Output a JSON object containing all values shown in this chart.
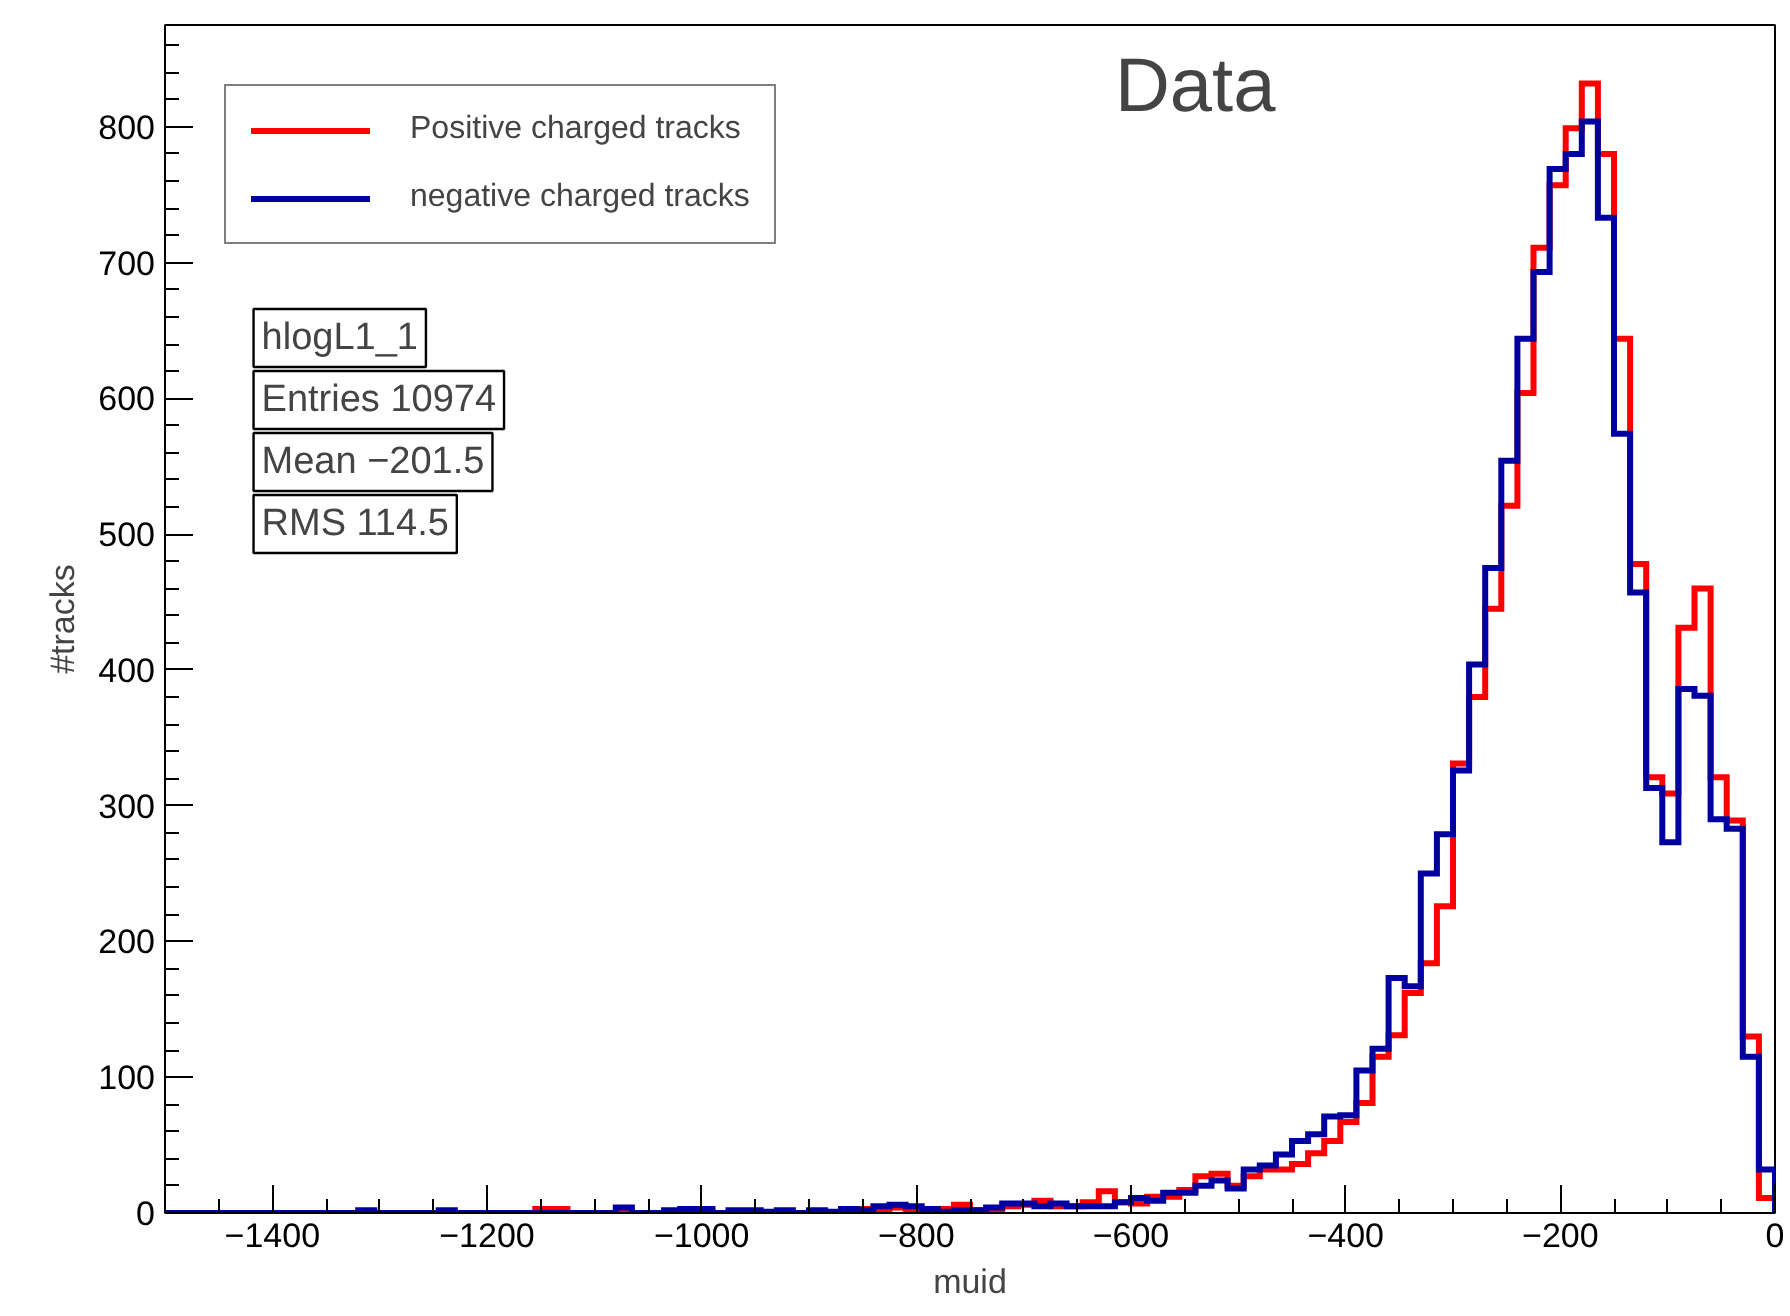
{
  "chart_data": {
    "type": "histogram",
    "title": "Data",
    "xlabel": "muid",
    "ylabel": "#tracks",
    "bins": [
      -1500,
      -1485,
      -1470,
      -1455,
      -1440,
      -1425,
      -1410,
      -1395,
      -1380,
      -1365,
      -1350,
      -1335,
      -1320,
      -1305,
      -1290,
      -1275,
      -1260,
      -1245,
      -1230,
      -1215,
      -1200,
      -1185,
      -1170,
      -1155,
      -1140,
      -1125,
      -1110,
      -1095,
      -1080,
      -1065,
      -1050,
      -1035,
      -1020,
      -1005,
      -990,
      -975,
      -960,
      -945,
      -930,
      -915,
      -900,
      -885,
      -870,
      -855,
      -840,
      -825,
      -810,
      -795,
      -780,
      -765,
      -750,
      -735,
      -720,
      -705,
      -690,
      -675,
      -660,
      -645,
      -630,
      -615,
      -600,
      -585,
      -570,
      -555,
      -540,
      -525,
      -510,
      -495,
      -480,
      -465,
      -450,
      -435,
      -420,
      -405,
      -390,
      -375,
      -360,
      -345,
      -330,
      -315,
      -300,
      -285,
      -270,
      -255,
      -240,
      -225,
      -210,
      -195,
      -180,
      -165,
      -150,
      -135,
      -120,
      -105,
      -90,
      -75,
      -60,
      -45,
      -30,
      -15,
      0
    ],
    "series": [
      {
        "name": "Positive charged tracks",
        "color": "#ff0000",
        "values": [
          0,
          0,
          0,
          0,
          0,
          0,
          0,
          0,
          0,
          0,
          0,
          0,
          0,
          0,
          0,
          0,
          0,
          0,
          0,
          0,
          0,
          0,
          0,
          3,
          3,
          0,
          0,
          0,
          0,
          0,
          0,
          0,
          2,
          2,
          0,
          0,
          1,
          0,
          0,
          0,
          1,
          0,
          3,
          3,
          1,
          4,
          3,
          2,
          3,
          6,
          2,
          1,
          5,
          6,
          9,
          5,
          5,
          8,
          16,
          8,
          7,
          12,
          12,
          17,
          27,
          29,
          20,
          27,
          32,
          32,
          36,
          44,
          53,
          67,
          81,
          115,
          131,
          162,
          184,
          226,
          331,
          380,
          445,
          521,
          604,
          711,
          757,
          799,
          832,
          780,
          644,
          478,
          321,
          309,
          431,
          460,
          321,
          289,
          130,
          11
        ]
      },
      {
        "name": "negative charged tracks",
        "color": "#0000a0",
        "values": [
          0,
          0,
          0,
          0,
          0,
          0,
          0,
          0,
          0,
          0,
          0,
          0,
          2,
          0,
          0,
          0,
          0,
          2,
          0,
          0,
          0,
          0,
          0,
          0,
          0,
          0,
          0,
          0,
          4,
          0,
          0,
          2,
          3,
          3,
          0,
          2,
          2,
          1,
          2,
          0,
          2,
          1,
          3,
          2,
          5,
          6,
          5,
          3,
          1,
          2,
          2,
          4,
          7,
          7,
          5,
          7,
          5,
          5,
          5,
          8,
          11,
          9,
          15,
          15,
          20,
          24,
          18,
          32,
          35,
          43,
          53,
          58,
          71,
          72,
          105,
          121,
          173,
          167,
          250,
          279,
          326,
          404,
          475,
          554,
          644,
          693,
          769,
          780,
          804,
          733,
          574,
          457,
          313,
          273,
          386,
          381,
          290,
          283,
          115,
          32
        ]
      }
    ],
    "xlim": [
      -1500,
      0
    ],
    "ylim": [
      0,
      875
    ],
    "xticks": [
      -1400,
      -1200,
      -1000,
      -800,
      -600,
      -400,
      -200,
      0
    ],
    "yticks": [
      0,
      100,
      200,
      300,
      400,
      500,
      600,
      700,
      800
    ],
    "grid": false,
    "legend": "top left",
    "annotations": [
      "hlogL1_1",
      "Entries 10974",
      "Mean −201.5",
      "RMS 114.5"
    ]
  }
}
